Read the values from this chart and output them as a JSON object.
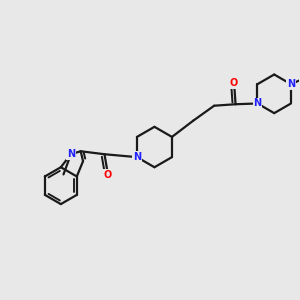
{
  "background_color": "#e8e8e8",
  "bond_color": "#1a1a1a",
  "nitrogen_color": "#2020ff",
  "oxygen_color": "#ff0000",
  "line_width": 1.6,
  "figsize": [
    3.0,
    3.0
  ],
  "dpi": 100,
  "xlim": [
    0,
    10
  ],
  "ylim": [
    0,
    10
  ]
}
